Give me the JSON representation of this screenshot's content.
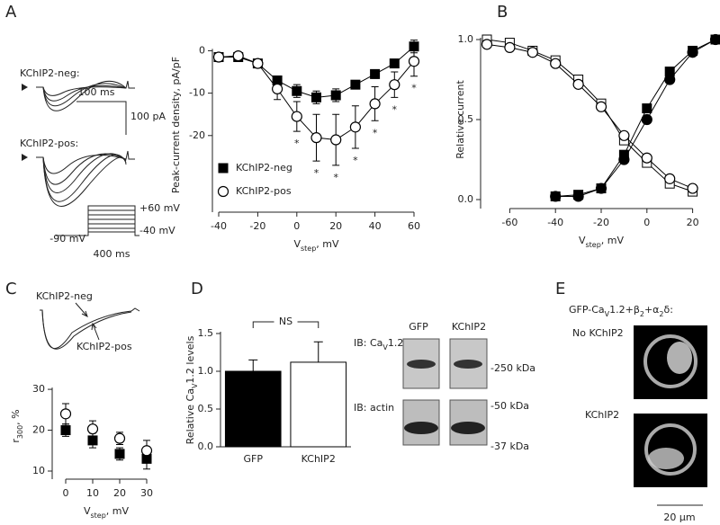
{
  "panel_labels": [
    "A",
    "B",
    "C",
    "D",
    "E"
  ],
  "traces_A": {
    "neg_label": "KChIP2-neg:",
    "pos_label": "KChIP2-pos:",
    "time_scale": "100 ms",
    "current_scale": "100 pA",
    "protocol": [
      "+60 mV",
      "-40 mV",
      "-90 mV",
      "400 ms"
    ]
  },
  "traces_C": {
    "neg_label": "KChIP2-neg",
    "pos_label": "KChIP2-pos"
  },
  "blot_D": {
    "lanes": [
      "GFP",
      "KChIP2"
    ],
    "rows": [
      [
        "IB: Ca",
        "V",
        "1.2"
      ],
      [
        "IB: actin"
      ]
    ],
    "markers": [
      "-250 kDa",
      "-50 kDa",
      "-37 kDa"
    ]
  },
  "images_E": {
    "title": [
      "GFP-Ca",
      "V",
      "1.2+β",
      "2",
      "+α",
      "2",
      "δ:"
    ],
    "rows": [
      "No KChIP2",
      "KChIP2"
    ],
    "scale_bar": "20 μm"
  },
  "chart_data": [
    {
      "type": "line",
      "x": [
        -40,
        -30,
        -20,
        -10,
        0,
        10,
        20,
        30,
        40,
        50,
        60
      ],
      "xlim": [
        -40,
        60
      ],
      "xticks": [
        -40,
        -20,
        0,
        20,
        40,
        60
      ],
      "ylim": [
        -37,
        2
      ],
      "yticks": [
        0,
        -10,
        -20
      ],
      "xlabel": [
        "V",
        "step",
        ", mV"
      ],
      "ylabel": [
        "Peak-current density, pA/pF"
      ],
      "legend": "lower-left",
      "series": [
        {
          "name": "KChIP2-neg",
          "marker": "square",
          "fill": true,
          "color": "#000000",
          "values": [
            -1.5,
            -1.5,
            -3,
            -7,
            -9.5,
            -11,
            -10.5,
            -8,
            -5.5,
            -3,
            1
          ],
          "errors": [
            0.5,
            0.5,
            0.5,
            1,
            1.5,
            1.5,
            1.5,
            1,
            1,
            1,
            1.5
          ]
        },
        {
          "name": "KChIP2-pos",
          "marker": "circle",
          "fill": false,
          "color": "#000000",
          "values": [
            -1.5,
            -1.2,
            -3,
            -9,
            -15.5,
            -20.5,
            -21,
            -18,
            -12.5,
            -8,
            -2.5
          ],
          "errors": [
            0.5,
            0.5,
            1,
            2.5,
            3.5,
            5.5,
            6,
            5,
            4,
            3,
            3.5
          ]
        }
      ],
      "annotations": {
        "text": "*",
        "x": [
          0,
          10,
          20,
          30,
          40,
          50,
          60
        ]
      }
    },
    {
      "type": "line",
      "xlim": [
        -70,
        30
      ],
      "xticks": [
        -60,
        -40,
        -20,
        0,
        20
      ],
      "ylim": [
        0,
        1
      ],
      "yticks": [
        {
          "value": 0,
          "label": "0.0"
        },
        {
          "value": 0.5,
          "label": "0.5"
        },
        {
          "value": 1,
          "label": "1.0"
        }
      ],
      "xlabel": [
        "V",
        "step",
        ", mV"
      ],
      "ylabel": [
        "Relative current"
      ],
      "series": [
        {
          "marker": "square",
          "fill": true,
          "color": "#000000",
          "x": [
            -40,
            -30,
            -20,
            -10,
            0,
            10,
            20,
            30
          ],
          "values": [
            0.02,
            0.03,
            0.07,
            0.28,
            0.57,
            0.8,
            0.93,
            1
          ]
        },
        {
          "marker": "circle",
          "fill": true,
          "color": "#000000",
          "x": [
            -40,
            -30,
            -20,
            -10,
            0,
            10,
            20,
            30
          ],
          "values": [
            0.02,
            0.02,
            0.07,
            0.25,
            0.5,
            0.75,
            0.92,
            1
          ]
        },
        {
          "marker": "square",
          "fill": false,
          "color": "#000000",
          "x": [
            -70,
            -60,
            -50,
            -40,
            -30,
            -20,
            -10,
            0,
            10,
            20
          ],
          "values": [
            1,
            0.98,
            0.93,
            0.87,
            0.75,
            0.6,
            0.37,
            0.23,
            0.1,
            0.05
          ]
        },
        {
          "marker": "circle",
          "fill": false,
          "color": "#000000",
          "x": [
            -70,
            -60,
            -50,
            -40,
            -30,
            -20,
            -10,
            0,
            10,
            20
          ],
          "values": [
            0.97,
            0.95,
            0.92,
            0.85,
            0.72,
            0.58,
            0.4,
            0.26,
            0.13,
            0.07
          ]
        }
      ]
    },
    {
      "type": "scatter",
      "x": [
        0,
        10,
        20,
        30
      ],
      "xlim": [
        0,
        30
      ],
      "xticks": [
        0,
        10,
        20,
        30
      ],
      "ylim": [
        10,
        32
      ],
      "yticks": [
        10,
        20,
        30
      ],
      "xlabel": [
        "V",
        "step",
        ", mV"
      ],
      "ylabel": [
        "r",
        "300",
        ", %"
      ],
      "series": [
        {
          "marker": "square",
          "fill": true,
          "color": "#000000",
          "values": [
            20,
            17.5,
            14.2,
            13
          ],
          "errors": [
            1.5,
            1.8,
            1.5,
            2.5
          ]
        },
        {
          "marker": "circle",
          "fill": false,
          "color": "#000000",
          "values": [
            24,
            20.3,
            18,
            15
          ],
          "errors": [
            2.5,
            2,
            1.5,
            2.5
          ]
        }
      ]
    },
    {
      "type": "bar",
      "categories": [
        "GFP",
        "KChIP2"
      ],
      "values": [
        1.0,
        1.12
      ],
      "errors": [
        0.15,
        0.27
      ],
      "colors": [
        "#000000",
        "#ffffff"
      ],
      "ylim": [
        0,
        1.5
      ],
      "yticks": [
        {
          "value": 0,
          "label": "0.0"
        },
        {
          "value": 0.5,
          "label": "0.5"
        },
        {
          "value": 1,
          "label": "1.0"
        },
        {
          "value": 1.5,
          "label": "1.5"
        }
      ],
      "ylabel": [
        "Relative Ca",
        "V",
        "1.2 levels"
      ],
      "annotation": "NS"
    }
  ]
}
